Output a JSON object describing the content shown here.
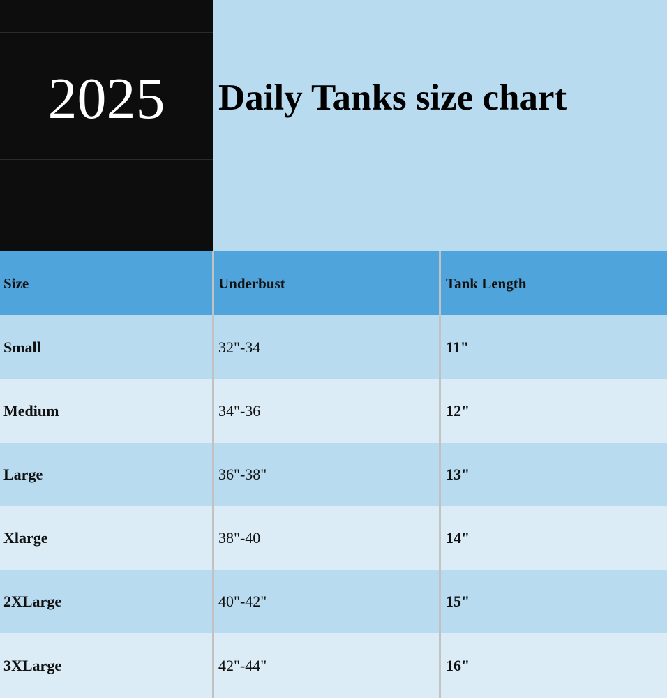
{
  "header": {
    "year": "2025",
    "title": "Daily Tanks size chart"
  },
  "table": {
    "columns": [
      "Size",
      "Underbust",
      "Tank Length"
    ],
    "rows": [
      [
        "Small",
        "32\"-34",
        "11\""
      ],
      [
        "Medium",
        "34\"-36",
        "12\""
      ],
      [
        "Large",
        "36\"-38\"",
        "13\""
      ],
      [
        "Xlarge",
        "38\"-40",
        "14\""
      ],
      [
        "2XLarge",
        "40\"-42\"",
        "15\""
      ],
      [
        "3XLarge",
        "42\"-44\"",
        "16\""
      ]
    ]
  },
  "colors": {
    "year_block": "#0d0d0d",
    "header_row": "#4fa4db",
    "row_dark": "#b8dbef",
    "row_light": "#dbecf6"
  }
}
